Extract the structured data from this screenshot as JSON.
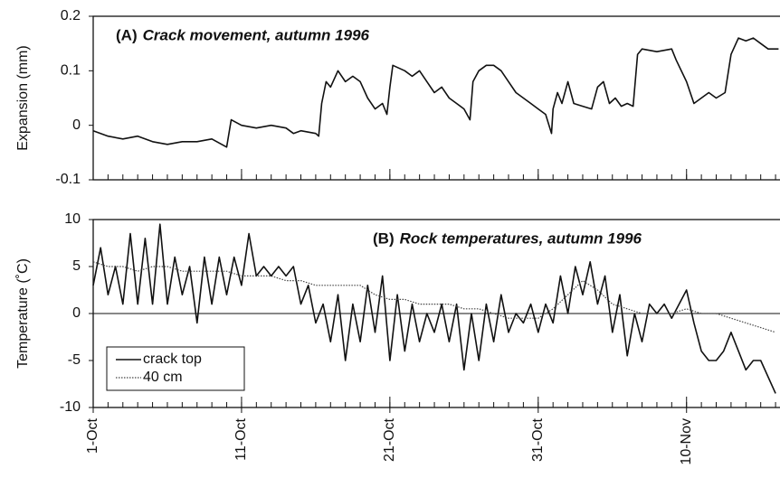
{
  "chart_data": [
    {
      "type": "line",
      "label": "(A)",
      "title": "Crack movement, autumn 1996",
      "y_label": "Expansion (mm)",
      "xlim": [
        0,
        46.3
      ],
      "xticks": [
        0,
        10,
        20,
        30,
        40
      ],
      "xminor": [
        0,
        1,
        2,
        3,
        4,
        5,
        6,
        7,
        8,
        9,
        10,
        11,
        12,
        13,
        14,
        15,
        16,
        17,
        18,
        19,
        20,
        21,
        22,
        23,
        24,
        25,
        26,
        27,
        28,
        29,
        30,
        31,
        32,
        33,
        34,
        35,
        36,
        37,
        38,
        39,
        40,
        41,
        42,
        43,
        44,
        45,
        46
      ],
      "ylim": [
        -0.1,
        0.2
      ],
      "yticks": [
        -0.1,
        0,
        0.1,
        0.2
      ],
      "series": [
        {
          "color": "#111111",
          "x": [
            0,
            1,
            2,
            3,
            4,
            5,
            6,
            7,
            8,
            9,
            9.3,
            10,
            11,
            12,
            13,
            13.5,
            14,
            15,
            15.2,
            15.4,
            15.7,
            16,
            16.5,
            17,
            17.5,
            18,
            18.5,
            19,
            19.5,
            19.8,
            20,
            20.2,
            21,
            21.5,
            22,
            22.5,
            23,
            23.5,
            24,
            24.5,
            25,
            25.4,
            25.6,
            26,
            26.5,
            27,
            27.5,
            28,
            28.5,
            29,
            29.5,
            30,
            30.5,
            30.9,
            31,
            31.3,
            31.6,
            32,
            32.4,
            33,
            33.6,
            34,
            34.4,
            34.8,
            35.2,
            35.6,
            36,
            36.4,
            36.7,
            37,
            38,
            39,
            39.3,
            40,
            40.5,
            41,
            41.5,
            42,
            42.6,
            43,
            43.5,
            44,
            44.5,
            45,
            45.5,
            46.2
          ],
          "values": [
            -0.01,
            -0.02,
            -0.025,
            -0.02,
            -0.03,
            -0.035,
            -0.03,
            -0.03,
            -0.025,
            -0.04,
            0.01,
            0.0,
            -0.005,
            0.0,
            -0.005,
            -0.015,
            -0.01,
            -0.015,
            -0.02,
            0.04,
            0.08,
            0.07,
            0.1,
            0.08,
            0.09,
            0.08,
            0.05,
            0.03,
            0.04,
            0.02,
            0.07,
            0.11,
            0.1,
            0.09,
            0.1,
            0.08,
            0.06,
            0.07,
            0.05,
            0.04,
            0.03,
            0.01,
            0.08,
            0.1,
            0.11,
            0.11,
            0.1,
            0.08,
            0.06,
            0.05,
            0.04,
            0.03,
            0.02,
            -0.015,
            0.03,
            0.06,
            0.04,
            0.08,
            0.04,
            0.035,
            0.03,
            0.07,
            0.08,
            0.04,
            0.05,
            0.035,
            0.04,
            0.035,
            0.13,
            0.14,
            0.135,
            0.14,
            0.12,
            0.08,
            0.04,
            0.05,
            0.06,
            0.05,
            0.06,
            0.13,
            0.16,
            0.155,
            0.16,
            0.15,
            0.14,
            0.14
          ]
        }
      ]
    },
    {
      "type": "line",
      "label": "(B)",
      "title": "Rock temperatures, autumn 1996",
      "y_label": "Temperature (˚C)",
      "zero_line": true,
      "xlim": [
        0,
        46.3
      ],
      "xticks": [
        {
          "value": 0,
          "label": "1-Oct"
        },
        {
          "value": 10,
          "label": "11-Oct"
        },
        {
          "value": 20,
          "label": "21-Oct"
        },
        {
          "value": 30,
          "label": "31-Oct"
        },
        {
          "value": 40,
          "label": "10-Nov"
        }
      ],
      "xminor": [
        0,
        1,
        2,
        3,
        4,
        5,
        6,
        7,
        8,
        9,
        10,
        11,
        12,
        13,
        14,
        15,
        16,
        17,
        18,
        19,
        20,
        21,
        22,
        23,
        24,
        25,
        26,
        27,
        28,
        29,
        30,
        31,
        32,
        33,
        34,
        35,
        36,
        37,
        38,
        39,
        40,
        41,
        42,
        43,
        44,
        45,
        46
      ],
      "ylim": [
        -10,
        10
      ],
      "yticks": [
        -10,
        -5,
        0,
        5,
        10
      ],
      "series": [
        {
          "name": "crack top",
          "color": "#111111",
          "dash": false,
          "x": [
            0,
            0.5,
            1,
            1.5,
            2,
            2.5,
            3,
            3.5,
            4,
            4.5,
            5,
            5.5,
            6,
            6.5,
            7,
            7.5,
            8,
            8.5,
            9,
            9.5,
            10,
            10.5,
            11,
            11.5,
            12,
            12.5,
            13,
            13.5,
            14,
            14.5,
            15,
            15.5,
            16,
            16.5,
            17,
            17.5,
            18,
            18.5,
            19,
            19.5,
            20,
            20.5,
            21,
            21.5,
            22,
            22.5,
            23,
            23.5,
            24,
            24.5,
            25,
            25.5,
            26,
            26.5,
            27,
            27.5,
            28,
            28.5,
            29,
            29.5,
            30,
            30.5,
            31,
            31.5,
            32,
            32.5,
            33,
            33.5,
            34,
            34.5,
            35,
            35.5,
            36,
            36.5,
            37,
            37.5,
            38,
            38.5,
            39,
            39.5,
            40,
            40.5,
            41,
            41.5,
            42,
            42.5,
            43,
            43.5,
            44,
            44.5,
            45,
            46
          ],
          "values": [
            3,
            7,
            2,
            5,
            1,
            8.5,
            1,
            8,
            1,
            9.5,
            1,
            6,
            2,
            5,
            -1,
            6,
            1,
            6,
            2,
            6,
            3,
            8.5,
            4,
            5,
            4,
            5,
            4,
            5,
            1,
            3,
            -1,
            1,
            -3,
            2,
            -5,
            1,
            -3,
            3,
            -2,
            4,
            -5,
            2,
            -4,
            1,
            -3,
            0,
            -2,
            1,
            -3,
            1,
            -6,
            0,
            -5,
            1,
            -3,
            2,
            -2,
            0,
            -1,
            1,
            -2,
            1,
            -1,
            4,
            0,
            5,
            2,
            5.5,
            1,
            4,
            -2,
            2,
            -4.5,
            0,
            -3,
            1,
            0,
            1,
            -0.5,
            1,
            2.5,
            -1,
            -4,
            -5,
            -5,
            -4,
            -2,
            -4,
            -6,
            -5,
            -5,
            -8.5
          ]
        },
        {
          "name": "40 cm",
          "color": "#444444",
          "dash": true,
          "x": [
            0,
            1,
            2,
            3,
            4,
            5,
            6,
            7,
            8,
            9,
            10,
            11,
            12,
            13,
            14,
            15,
            16,
            17,
            18,
            19,
            20,
            21,
            22,
            23,
            24,
            25,
            26,
            27,
            28,
            29,
            30,
            31,
            32,
            33,
            34,
            35,
            36,
            37,
            38,
            39,
            40,
            41,
            42,
            43,
            44,
            45,
            46
          ],
          "values": [
            5.5,
            5,
            5,
            4.5,
            5,
            5,
            4.5,
            4.5,
            4.5,
            4.5,
            4,
            4,
            4,
            3.5,
            3.5,
            3,
            3,
            3,
            3,
            2,
            1.5,
            1.5,
            1,
            1,
            1,
            0.5,
            0.5,
            0,
            -0.5,
            -0.5,
            -0.5,
            0.5,
            2,
            3.5,
            2.5,
            1,
            0.5,
            0,
            0,
            0,
            0.5,
            0,
            0,
            -0.5,
            -1,
            -1.5,
            -2
          ]
        }
      ]
    }
  ]
}
